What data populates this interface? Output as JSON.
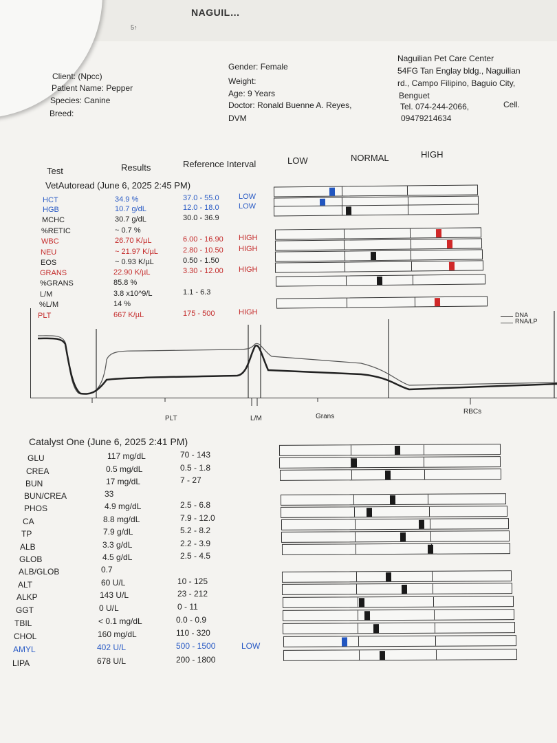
{
  "header": {
    "top_title": "NAGUIL…",
    "top_sub": "5↑"
  },
  "client": {
    "client": "Client:  (Npcc)",
    "patient": "Patient Name: Pepper",
    "species": "Species: Canine",
    "breed": "Breed:"
  },
  "details": {
    "gender": "Gender: Female",
    "weight": "Weight:",
    "age": "Age: 9 Years",
    "doctor": "Doctor: Ronald Buenne A. Reyes,",
    "doctor2": "DVM"
  },
  "clinic": {
    "name": "Naguilian Pet Care Center",
    "addr1": "54FG Tan Englay bldg., Naguilian",
    "addr2": "rd., Campo Filipino, Baguio City,",
    "addr3": "Benguet",
    "tel": "Tel. 074-244-2066,",
    "cell_label": "Cell.",
    "cell": "09479214634"
  },
  "columns": {
    "test": "Test",
    "results": "Results",
    "ref": "Reference Interval",
    "low": "LOW",
    "normal": "NORMAL",
    "high": "HIGH"
  },
  "vet": {
    "title": "VetAutoread (June 6, 2025 2:45 PM)",
    "rows": [
      {
        "name": "HCT",
        "result": "34.9 %",
        "ref": "37.0 - 55.0",
        "flag": "LOW",
        "color": "blue"
      },
      {
        "name": "HGB",
        "result": "10.7 g/dL",
        "ref": "12.0 - 18.0",
        "flag": "LOW",
        "color": "blue"
      },
      {
        "name": "MCHC",
        "result": "30.7 g/dL",
        "ref": "30.0 - 36.9",
        "flag": "",
        "color": "blk"
      },
      {
        "name": "%RETIC",
        "result": "~ 0.7 %",
        "ref": "",
        "flag": "",
        "color": "blk"
      },
      {
        "name": "WBC",
        "result": "26.70 K/µL",
        "ref": "6.00 - 16.90",
        "flag": "HIGH",
        "color": "red"
      },
      {
        "name": "NEU",
        "result": "~ 21.97 K/µL",
        "ref": "2.80 - 10.50",
        "flag": "HIGH",
        "color": "red"
      },
      {
        "name": "EOS",
        "result": "~ 0.93 K/µL",
        "ref": "0.50 - 1.50",
        "flag": "",
        "color": "blk"
      },
      {
        "name": "GRANS",
        "result": "22.90 K/µL",
        "ref": "3.30 - 12.00",
        "flag": "HIGH",
        "color": "red"
      },
      {
        "name": "%GRANS",
        "result": "85.8 %",
        "ref": "",
        "flag": "",
        "color": "blk"
      },
      {
        "name": "L/M",
        "result": "3.8 x10^9/L",
        "ref": "1.1 - 6.3",
        "flag": "",
        "color": "blk"
      },
      {
        "name": "%L/M",
        "result": "14 %",
        "ref": "",
        "flag": "",
        "color": "blk"
      },
      {
        "name": "PLT",
        "result": "667 K/µL",
        "ref": "175 - 500",
        "flag": "HIGH",
        "color": "red"
      }
    ]
  },
  "histogram": {
    "legend": [
      "DNA",
      "RNA/LP"
    ],
    "labels": [
      "PLT",
      "L/M",
      "Grans",
      "RBCs"
    ]
  },
  "catalyst": {
    "title": "Catalyst One (June 6, 2025 2:41 PM)",
    "rows": [
      {
        "name": "GLU",
        "result": "117 mg/dL",
        "ref": "70 - 143",
        "flag": "",
        "color": "blk"
      },
      {
        "name": "CREA",
        "result": "0.5 mg/dL",
        "ref": "0.5 - 1.8",
        "flag": "",
        "color": "blk"
      },
      {
        "name": "BUN",
        "result": "17 mg/dL",
        "ref": "7 - 27",
        "flag": "",
        "color": "blk"
      },
      {
        "name": "BUN/CREA",
        "result": "33",
        "ref": "",
        "flag": "",
        "color": "blk"
      },
      {
        "name": "PHOS",
        "result": "4.9 mg/dL",
        "ref": "2.5 - 6.8",
        "flag": "",
        "color": "blk"
      },
      {
        "name": "CA",
        "result": "8.8 mg/dL",
        "ref": "7.9 - 12.0",
        "flag": "",
        "color": "blk"
      },
      {
        "name": "TP",
        "result": "7.9 g/dL",
        "ref": "5.2 - 8.2",
        "flag": "",
        "color": "blk"
      },
      {
        "name": "ALB",
        "result": "3.3 g/dL",
        "ref": "2.2 - 3.9",
        "flag": "",
        "color": "blk"
      },
      {
        "name": "GLOB",
        "result": "4.5 g/dL",
        "ref": "2.5 - 4.5",
        "flag": "",
        "color": "blk"
      },
      {
        "name": "ALB/GLOB",
        "result": "0.7",
        "ref": "",
        "flag": "",
        "color": "blk"
      },
      {
        "name": "ALT",
        "result": "60 U/L",
        "ref": "10 - 125",
        "flag": "",
        "color": "blk"
      },
      {
        "name": "ALKP",
        "result": "143 U/L",
        "ref": "23 - 212",
        "flag": "",
        "color": "blk"
      },
      {
        "name": "GGT",
        "result": "0 U/L",
        "ref": "0 - 11",
        "flag": "",
        "color": "blk"
      },
      {
        "name": "TBIL",
        "result": "< 0.1 mg/dL",
        "ref": "0.0 - 0.9",
        "flag": "",
        "color": "blk"
      },
      {
        "name": "CHOL",
        "result": "160 mg/dL",
        "ref": "110 - 320",
        "flag": "",
        "color": "blk"
      },
      {
        "name": "AMYL",
        "result": "402 U/L",
        "ref": "500 - 1500",
        "flag": "LOW",
        "color": "blue"
      },
      {
        "name": "LIPA",
        "result": "678 U/L",
        "ref": "200 - 1800",
        "flag": "",
        "color": "blk"
      }
    ]
  }
}
